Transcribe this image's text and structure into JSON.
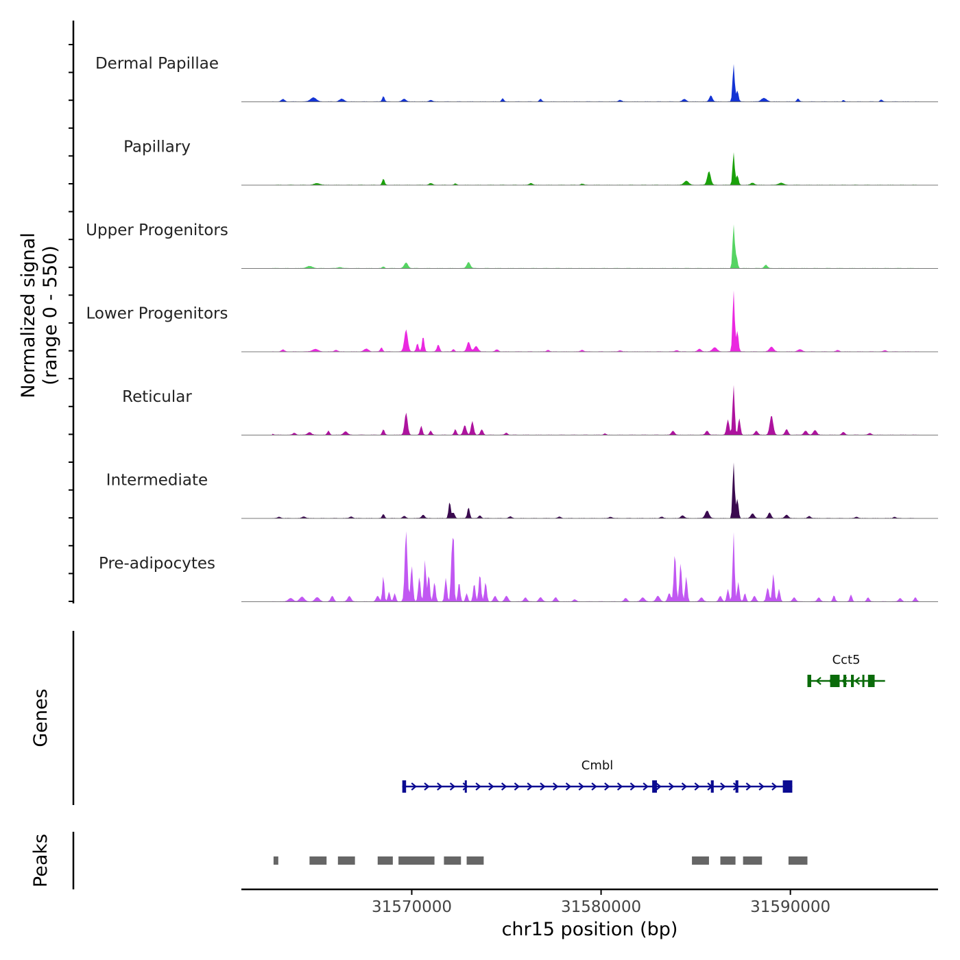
{
  "chart_data": {
    "type": "area",
    "title": "",
    "signal_ylabel_line1": "Normalized signal",
    "signal_ylabel_line2": "(range 0 - 550)",
    "ylim": [
      0,
      550
    ],
    "xlabel": "chr15 position (bp)",
    "xlim": [
      31561000,
      31597800
    ],
    "x_ticks": [
      31570000,
      31580000,
      31590000
    ],
    "x_tick_labels": [
      "31570000",
      "31580000",
      "31590000"
    ],
    "tracks": [
      {
        "name": "Dermal Papillae",
        "color": "#1434d4",
        "peaks": [
          [
            31563200,
            18,
            90
          ],
          [
            31564800,
            30,
            150
          ],
          [
            31566300,
            20,
            120
          ],
          [
            31568500,
            40,
            60
          ],
          [
            31569600,
            20,
            100
          ],
          [
            31571000,
            12,
            80
          ],
          [
            31574800,
            24,
            60
          ],
          [
            31576800,
            20,
            60
          ],
          [
            31581000,
            12,
            80
          ],
          [
            31584400,
            18,
            100
          ],
          [
            31585800,
            45,
            80
          ],
          [
            31587000,
            270,
            55
          ],
          [
            31587200,
            80,
            60
          ],
          [
            31588600,
            25,
            140
          ],
          [
            31590400,
            22,
            60
          ],
          [
            31592800,
            12,
            50
          ],
          [
            31594800,
            14,
            60
          ]
        ]
      },
      {
        "name": "Papillary",
        "color": "#1aa10a",
        "peaks": [
          [
            31565000,
            12,
            150
          ],
          [
            31568500,
            45,
            60
          ],
          [
            31571000,
            12,
            90
          ],
          [
            31572300,
            10,
            60
          ],
          [
            31576300,
            14,
            80
          ],
          [
            31579000,
            8,
            80
          ],
          [
            31584500,
            30,
            120
          ],
          [
            31585700,
            100,
            90
          ],
          [
            31587000,
            235,
            55
          ],
          [
            31587200,
            70,
            60
          ],
          [
            31588000,
            15,
            100
          ],
          [
            31589500,
            15,
            130
          ]
        ]
      },
      {
        "name": "Upper Progenitors",
        "color": "#55d462",
        "peaks": [
          [
            31564600,
            15,
            160
          ],
          [
            31566200,
            8,
            100
          ],
          [
            31568500,
            12,
            60
          ],
          [
            31569700,
            40,
            100
          ],
          [
            31573000,
            45,
            90
          ],
          [
            31587000,
            310,
            55
          ],
          [
            31587150,
            85,
            60
          ],
          [
            31588700,
            25,
            80
          ]
        ]
      },
      {
        "name": "Lower Progenitors",
        "color": "#ea28e0",
        "peaks": [
          [
            31563200,
            14,
            80
          ],
          [
            31564900,
            18,
            150
          ],
          [
            31566000,
            12,
            80
          ],
          [
            31567600,
            20,
            120
          ],
          [
            31568400,
            30,
            60
          ],
          [
            31569700,
            160,
            90
          ],
          [
            31570300,
            60,
            60
          ],
          [
            31570600,
            110,
            60
          ],
          [
            31571400,
            50,
            70
          ],
          [
            31572200,
            18,
            60
          ],
          [
            31573000,
            70,
            90
          ],
          [
            31573400,
            40,
            100
          ],
          [
            31574500,
            15,
            80
          ],
          [
            31577200,
            12,
            70
          ],
          [
            31579000,
            12,
            80
          ],
          [
            31581000,
            8,
            80
          ],
          [
            31584000,
            10,
            80
          ],
          [
            31585200,
            20,
            90
          ],
          [
            31586000,
            30,
            120
          ],
          [
            31587000,
            440,
            55
          ],
          [
            31587200,
            150,
            60
          ],
          [
            31589000,
            35,
            110
          ],
          [
            31590500,
            15,
            120
          ],
          [
            31592500,
            10,
            80
          ],
          [
            31595000,
            8,
            80
          ]
        ]
      },
      {
        "name": "Reticular",
        "color": "#ad139e",
        "peaks": [
          [
            31562600,
            10,
            80
          ],
          [
            31563800,
            14,
            80
          ],
          [
            31564600,
            20,
            100
          ],
          [
            31565600,
            30,
            60
          ],
          [
            31566500,
            25,
            100
          ],
          [
            31568500,
            40,
            60
          ],
          [
            31569700,
            160,
            80
          ],
          [
            31570500,
            65,
            60
          ],
          [
            31571000,
            30,
            60
          ],
          [
            31572300,
            40,
            60
          ],
          [
            31572800,
            70,
            80
          ],
          [
            31573200,
            100,
            70
          ],
          [
            31573700,
            40,
            70
          ],
          [
            31575000,
            15,
            70
          ],
          [
            31580200,
            10,
            60
          ],
          [
            31583800,
            30,
            80
          ],
          [
            31585600,
            30,
            80
          ],
          [
            31586700,
            110,
            70
          ],
          [
            31587000,
            360,
            55
          ],
          [
            31587300,
            120,
            60
          ],
          [
            31588200,
            30,
            80
          ],
          [
            31589000,
            140,
            90
          ],
          [
            31589800,
            40,
            80
          ],
          [
            31590800,
            30,
            90
          ],
          [
            31591300,
            35,
            90
          ],
          [
            31592800,
            20,
            80
          ],
          [
            31594200,
            12,
            80
          ]
        ]
      },
      {
        "name": "Intermediate",
        "color": "#3a0a4f",
        "peaks": [
          [
            31563000,
            10,
            80
          ],
          [
            31564300,
            12,
            90
          ],
          [
            31566800,
            12,
            80
          ],
          [
            31568500,
            30,
            60
          ],
          [
            31569600,
            15,
            80
          ],
          [
            31570600,
            25,
            80
          ],
          [
            31572000,
            120,
            55
          ],
          [
            31572200,
            40,
            70
          ],
          [
            31573000,
            80,
            60
          ],
          [
            31573600,
            20,
            70
          ],
          [
            31575200,
            12,
            80
          ],
          [
            31577800,
            10,
            80
          ],
          [
            31580500,
            10,
            80
          ],
          [
            31583200,
            10,
            80
          ],
          [
            31584300,
            20,
            90
          ],
          [
            31585600,
            55,
            100
          ],
          [
            31587000,
            400,
            55
          ],
          [
            31587200,
            140,
            60
          ],
          [
            31588000,
            35,
            90
          ],
          [
            31588900,
            40,
            80
          ],
          [
            31589800,
            25,
            90
          ],
          [
            31591000,
            15,
            80
          ],
          [
            31593500,
            10,
            80
          ],
          [
            31595500,
            10,
            70
          ]
        ]
      },
      {
        "name": "Pre-adipocytes",
        "color": "#c157f2",
        "peaks": [
          [
            31562400,
            10,
            80
          ],
          [
            31563600,
            25,
            120
          ],
          [
            31564200,
            35,
            120
          ],
          [
            31565000,
            30,
            120
          ],
          [
            31565800,
            40,
            80
          ],
          [
            31566700,
            40,
            90
          ],
          [
            31568200,
            40,
            80
          ],
          [
            31568500,
            190,
            50
          ],
          [
            31568800,
            70,
            60
          ],
          [
            31569100,
            60,
            60
          ],
          [
            31569700,
            510,
            70
          ],
          [
            31570000,
            260,
            60
          ],
          [
            31570400,
            180,
            60
          ],
          [
            31570700,
            300,
            55
          ],
          [
            31570900,
            200,
            55
          ],
          [
            31571200,
            140,
            60
          ],
          [
            31571800,
            170,
            60
          ],
          [
            31572100,
            320,
            45
          ],
          [
            31572200,
            520,
            40
          ],
          [
            31572500,
            140,
            60
          ],
          [
            31572900,
            60,
            60
          ],
          [
            31573300,
            130,
            60
          ],
          [
            31573600,
            200,
            60
          ],
          [
            31573900,
            140,
            60
          ],
          [
            31574400,
            40,
            80
          ],
          [
            31575000,
            40,
            90
          ],
          [
            31576000,
            30,
            80
          ],
          [
            31576800,
            30,
            90
          ],
          [
            31577600,
            30,
            80
          ],
          [
            31578600,
            15,
            80
          ],
          [
            31581300,
            25,
            80
          ],
          [
            31582200,
            30,
            100
          ],
          [
            31583000,
            40,
            100
          ],
          [
            31583600,
            60,
            80
          ],
          [
            31583900,
            350,
            60
          ],
          [
            31584200,
            280,
            60
          ],
          [
            31584500,
            180,
            60
          ],
          [
            31585300,
            30,
            90
          ],
          [
            31586300,
            40,
            80
          ],
          [
            31586700,
            90,
            60
          ],
          [
            31587000,
            500,
            50
          ],
          [
            31587250,
            140,
            60
          ],
          [
            31587600,
            60,
            60
          ],
          [
            31588100,
            40,
            80
          ],
          [
            31588800,
            100,
            70
          ],
          [
            31589100,
            200,
            60
          ],
          [
            31589400,
            90,
            60
          ],
          [
            31590200,
            30,
            80
          ],
          [
            31591500,
            30,
            80
          ],
          [
            31592300,
            45,
            60
          ],
          [
            31593200,
            50,
            60
          ],
          [
            31594100,
            30,
            70
          ],
          [
            31595800,
            25,
            80
          ],
          [
            31596600,
            30,
            70
          ]
        ]
      }
    ],
    "genes_label": "Genes",
    "genes": [
      {
        "name": "Cct5",
        "strand": "-",
        "color": "#0a6b0a",
        "start": 31590900,
        "end": 31595000,
        "exons": [
          [
            31590900,
            31591100
          ],
          [
            31592100,
            31592600
          ],
          [
            31592800,
            31592950
          ],
          [
            31593200,
            31593350
          ],
          [
            31593800,
            31593900
          ],
          [
            31594100,
            31594450
          ]
        ]
      },
      {
        "name": "Cmbl",
        "strand": "+",
        "color": "#0a0a91",
        "start": 31569500,
        "end": 31590100,
        "exons": [
          [
            31569500,
            31569700
          ],
          [
            31572800,
            31572900
          ],
          [
            31582700,
            31582950
          ],
          [
            31585800,
            31585950
          ],
          [
            31587100,
            31587250
          ],
          [
            31589600,
            31590100
          ]
        ]
      }
    ],
    "peaks_label": "Peaks",
    "peak_regions": [
      [
        31562700,
        31562950
      ],
      [
        31564600,
        31565500
      ],
      [
        31566100,
        31567000
      ],
      [
        31568200,
        31569000
      ],
      [
        31569300,
        31570200
      ],
      [
        31570200,
        31571200
      ],
      [
        31571700,
        31572600
      ],
      [
        31572900,
        31573800
      ],
      [
        31584800,
        31585700
      ],
      [
        31586300,
        31587100
      ],
      [
        31587500,
        31588500
      ],
      [
        31589900,
        31590900
      ]
    ]
  }
}
